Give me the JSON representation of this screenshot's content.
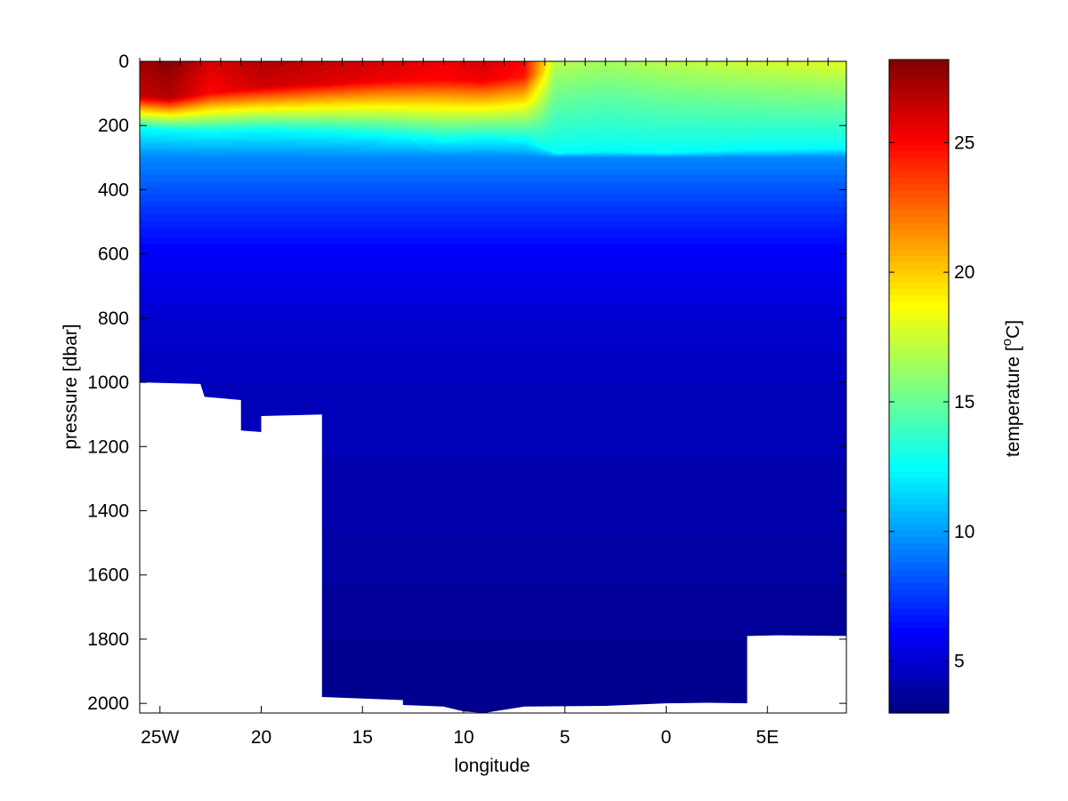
{
  "chart_data": {
    "type": "heatmap",
    "title": "",
    "xlabel": "longitude",
    "ylabel": "pressure [dbar]",
    "colorbar_label": "temperature [°C]",
    "colorbar_label_parts": {
      "before": "temperature [",
      "superscript": "o",
      "after": "C]"
    },
    "colormap": "jet",
    "xlim": [
      -26.0,
      8.9
    ],
    "ylim": [
      2030,
      0
    ],
    "clim": [
      3.0,
      28.2
    ],
    "x_ticks": [
      {
        "value": -25,
        "label": "25W"
      },
      {
        "value": -20,
        "label": "20"
      },
      {
        "value": -15,
        "label": "15"
      },
      {
        "value": -10,
        "label": "10"
      },
      {
        "value": -5,
        "label": "5"
      },
      {
        "value": 0,
        "label": "0"
      },
      {
        "value": 5,
        "label": "5E"
      }
    ],
    "y_ticks": [
      {
        "value": 0,
        "label": "0"
      },
      {
        "value": 200,
        "label": "200"
      },
      {
        "value": 400,
        "label": "400"
      },
      {
        "value": 600,
        "label": "600"
      },
      {
        "value": 800,
        "label": "800"
      },
      {
        "value": 1000,
        "label": "1000"
      },
      {
        "value": 1200,
        "label": "1200"
      },
      {
        "value": 1400,
        "label": "1400"
      },
      {
        "value": 1600,
        "label": "1600"
      },
      {
        "value": 1800,
        "label": "1800"
      },
      {
        "value": 2000,
        "label": "2000"
      }
    ],
    "colorbar_ticks": [
      {
        "value": 5,
        "label": "5"
      },
      {
        "value": 10,
        "label": "10"
      },
      {
        "value": 15,
        "label": "15"
      },
      {
        "value": 20,
        "label": "20"
      },
      {
        "value": 25,
        "label": "25"
      }
    ],
    "station_longitudes": [
      -26.0,
      -25.0,
      -24.0,
      -23.0,
      -22.0,
      -21.0,
      -20.0,
      -19.0,
      -18.0,
      -17.0,
      -16.0,
      -15.0,
      -14.0,
      -13.0,
      -12.0,
      -11.0,
      -10.0,
      -9.0,
      -8.0,
      -7.0,
      -6.0,
      -5.0,
      -4.0,
      -3.0,
      -2.0,
      -1.0,
      0.0,
      1.0,
      2.0,
      3.0,
      4.0,
      5.0,
      6.0,
      7.0,
      8.0
    ],
    "profile_depths": [
      0,
      25,
      50,
      100,
      150,
      200,
      250,
      300,
      400,
      500,
      600,
      700,
      800,
      900,
      1000,
      1200,
      1400,
      1600,
      1800,
      2000
    ],
    "temperature_profiles": [
      {
        "x": -26.0,
        "mixed_layer_temp": 27.5,
        "mixed_layer_depth": 110,
        "thermocline_base": 210
      },
      {
        "x": -24.5,
        "mixed_layer_temp": 28.0,
        "mixed_layer_depth": 115,
        "thermocline_base": 215
      },
      {
        "x": -22.5,
        "mixed_layer_temp": 26.0,
        "mixed_layer_depth": 100,
        "thermocline_base": 220
      },
      {
        "x": -20.0,
        "mixed_layer_temp": 27.0,
        "mixed_layer_depth": 80,
        "thermocline_base": 215
      },
      {
        "x": -17.0,
        "mixed_layer_temp": 26.5,
        "mixed_layer_depth": 70,
        "thermocline_base": 220
      },
      {
        "x": -14.0,
        "mixed_layer_temp": 26.0,
        "mixed_layer_depth": 60,
        "thermocline_base": 230
      },
      {
        "x": -11.0,
        "mixed_layer_temp": 25.5,
        "mixed_layer_depth": 60,
        "thermocline_base": 245
      },
      {
        "x": -9.0,
        "mixed_layer_temp": 26.0,
        "mixed_layer_depth": 60,
        "thermocline_base": 240
      },
      {
        "x": -7.0,
        "mixed_layer_temp": 25.0,
        "mixed_layer_depth": 50,
        "thermocline_base": 245
      },
      {
        "x": -5.5,
        "mixed_layer_temp": 17.0,
        "mixed_layer_depth": 20,
        "thermocline_base": 285
      },
      {
        "x": -3.0,
        "mixed_layer_temp": 16.5,
        "mixed_layer_depth": 15,
        "thermocline_base": 280
      },
      {
        "x": 0.0,
        "mixed_layer_temp": 17.0,
        "mixed_layer_depth": 15,
        "thermocline_base": 285
      },
      {
        "x": 4.0,
        "mixed_layer_temp": 17.5,
        "mixed_layer_depth": 12,
        "thermocline_base": 275
      },
      {
        "x": 8.9,
        "mixed_layer_temp": 18.0,
        "mixed_layer_depth": 10,
        "thermocline_base": 270
      }
    ],
    "deep_temperatures": [
      {
        "pressure": 300,
        "value": 9.5
      },
      {
        "pressure": 400,
        "value": 8.2
      },
      {
        "pressure": 500,
        "value": 7.0
      },
      {
        "pressure": 600,
        "value": 6.0
      },
      {
        "pressure": 800,
        "value": 5.0
      },
      {
        "pressure": 1000,
        "value": 4.5
      },
      {
        "pressure": 1200,
        "value": 4.3
      },
      {
        "pressure": 1400,
        "value": 4.1
      },
      {
        "pressure": 1600,
        "value": 3.8
      },
      {
        "pressure": 1800,
        "value": 3.5
      },
      {
        "pressure": 2000,
        "value": 3.3
      }
    ],
    "seafloor": [
      {
        "x": -26.0,
        "pressure": 1000
      },
      {
        "x": -23.0,
        "pressure": 1005
      },
      {
        "x": -22.8,
        "pressure": 1045
      },
      {
        "x": -21.0,
        "pressure": 1055
      },
      {
        "x": -21.0,
        "pressure": 1150
      },
      {
        "x": -20.0,
        "pressure": 1155
      },
      {
        "x": -20.0,
        "pressure": 1105
      },
      {
        "x": -17.0,
        "pressure": 1100
      },
      {
        "x": -17.0,
        "pressure": 1980
      },
      {
        "x": -15.0,
        "pressure": 1985
      },
      {
        "x": -13.0,
        "pressure": 1990
      },
      {
        "x": -13.0,
        "pressure": 2005
      },
      {
        "x": -11.0,
        "pressure": 2010
      },
      {
        "x": -10.0,
        "pressure": 2025
      },
      {
        "x": -9.0,
        "pressure": 2030
      },
      {
        "x": -8.0,
        "pressure": 2020
      },
      {
        "x": -7.0,
        "pressure": 2010
      },
      {
        "x": -3.0,
        "pressure": 2008
      },
      {
        "x": 0.0,
        "pressure": 2000
      },
      {
        "x": 2.0,
        "pressure": 1998
      },
      {
        "x": 4.0,
        "pressure": 2000
      },
      {
        "x": 4.0,
        "pressure": 1790
      },
      {
        "x": 5.5,
        "pressure": 1788
      },
      {
        "x": 8.9,
        "pressure": 1790
      }
    ]
  }
}
